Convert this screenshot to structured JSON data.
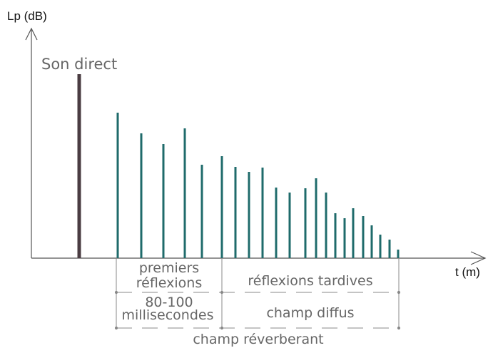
{
  "colors": {
    "axis": "#555555",
    "direct_bar": "#4a3c42",
    "reflection_bars": "#1f6b6b",
    "label_text": "#666666",
    "bracket": "#888888"
  },
  "labels": {
    "y_axis": "Lp (dB)",
    "x_axis": "t (m)",
    "direct_sound": "Son direct",
    "early_1": "premiers",
    "early_2": "réflexions",
    "late_reflections": "réflexions tardives",
    "time_1": "80-100",
    "time_2": "millisecondes",
    "diffuse_field": "champ diffus",
    "reverberant_field": "champ réverberant"
  },
  "chart_data": {
    "type": "bar",
    "direct_sound": {
      "t": 111,
      "level": 258
    },
    "reflections": [
      {
        "t": 165,
        "level": 204
      },
      {
        "t": 198,
        "level": 175
      },
      {
        "t": 229,
        "level": 160
      },
      {
        "t": 259,
        "level": 182
      },
      {
        "t": 283,
        "level": 131
      },
      {
        "t": 311,
        "level": 143
      },
      {
        "t": 330,
        "level": 128
      },
      {
        "t": 349,
        "level": 121
      },
      {
        "t": 368,
        "level": 127
      },
      {
        "t": 387,
        "level": 99
      },
      {
        "t": 406,
        "level": 92
      },
      {
        "t": 428,
        "level": 98
      },
      {
        "t": 443,
        "level": 112
      },
      {
        "t": 457,
        "level": 92
      },
      {
        "t": 470,
        "level": 63
      },
      {
        "t": 483,
        "level": 56
      },
      {
        "t": 495,
        "level": 70
      },
      {
        "t": 509,
        "level": 59
      },
      {
        "t": 521,
        "level": 46
      },
      {
        "t": 533,
        "level": 33
      },
      {
        "t": 546,
        "level": 26
      },
      {
        "t": 558,
        "level": 12
      }
    ]
  }
}
